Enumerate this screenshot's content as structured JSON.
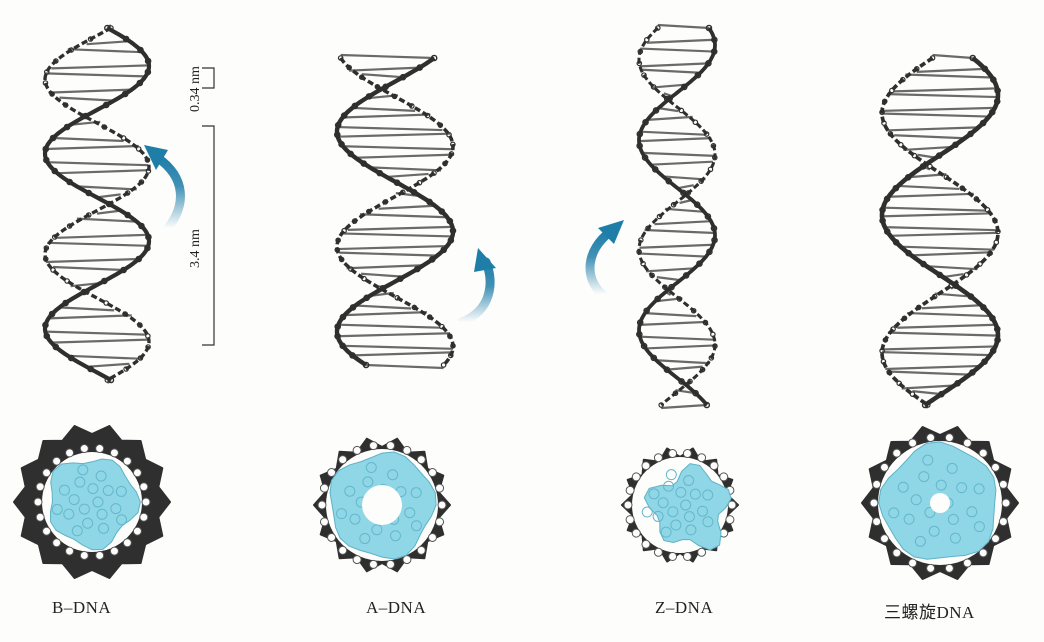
{
  "figure": {
    "labels": {
      "b_dna": "B–DNA",
      "a_dna": "A–DNA",
      "z_dna": "Z–DNA",
      "triple": "三螺旋DNA"
    },
    "dimensions": {
      "small": "0.34 nm",
      "large": "3.4 nm"
    },
    "colors": {
      "backbone": "#2f2f2f",
      "base_fill": "#8fd6e6",
      "arrow": "#1f7ea8"
    }
  }
}
